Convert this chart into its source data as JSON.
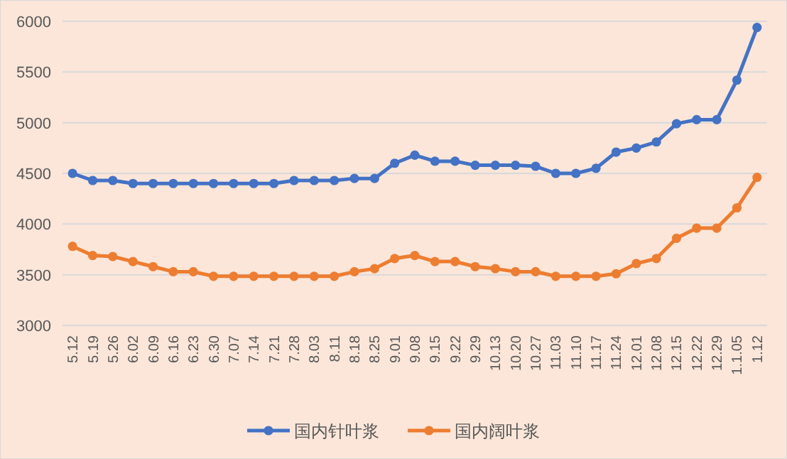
{
  "chart_data": {
    "type": "line",
    "categories": [
      "5.12",
      "5.19",
      "5.26",
      "6.02",
      "6.09",
      "6.16",
      "6.23",
      "6.30",
      "7.07",
      "7.14",
      "7.21",
      "7.28",
      "8.03",
      "8.11",
      "8.18",
      "8.25",
      "9.01",
      "9.08",
      "9.15",
      "9.22",
      "9.29",
      "10.13",
      "10.20",
      "10.27",
      "11.03",
      "11.10",
      "11.17",
      "11.24",
      "12.01",
      "12.08",
      "12.15",
      "12.22",
      "12.29",
      "1.1.05",
      "1.12"
    ],
    "series": [
      {
        "name": "国内针叶浆",
        "color": "#4472c4",
        "values": [
          4500,
          4430,
          4430,
          4400,
          4400,
          4400,
          4400,
          4400,
          4400,
          4400,
          4400,
          4430,
          4430,
          4430,
          4450,
          4450,
          4600,
          4680,
          4620,
          4620,
          4580,
          4580,
          4580,
          4570,
          4500,
          4500,
          4550,
          4710,
          4750,
          4810,
          4990,
          5030,
          5030,
          5420,
          5940
        ]
      },
      {
        "name": "国内阔叶浆",
        "color": "#ed7d31",
        "values": [
          3780,
          3690,
          3680,
          3630,
          3580,
          3530,
          3530,
          3485,
          3485,
          3485,
          3485,
          3485,
          3485,
          3485,
          3530,
          3560,
          3660,
          3690,
          3630,
          3630,
          3580,
          3560,
          3530,
          3530,
          3485,
          3485,
          3485,
          3510,
          3610,
          3660,
          3860,
          3960,
          3960,
          4160,
          4460
        ]
      }
    ],
    "ylim": [
      3000,
      6000
    ],
    "yticks": [
      3000,
      3500,
      4000,
      4500,
      5000,
      5500,
      6000
    ],
    "grid": "y",
    "legend": "bottom",
    "marker": "circle",
    "line_style": "solid"
  }
}
